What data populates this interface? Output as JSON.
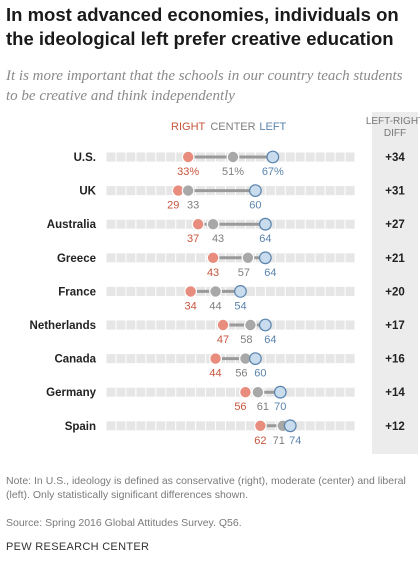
{
  "title": "In most advanced economies, individuals on the ideological left prefer creative education",
  "subtitle": "It is more important that the schools in our country teach students to be creative and think independently",
  "note": "Note: In U.S., ideology is defined as conservative (right), moderate (center) and liberal (left). Only statistically significant differences shown.",
  "source": "Source: Spring 2016 Global Attitudes Survey. Q56.",
  "organization": "PEW RESEARCH CENTER",
  "colors": {
    "right": "#e88d7e",
    "right_text": "#c8553d",
    "center": "#a8a8a8",
    "center_text": "#7f7f7f",
    "left": "#c8dcee",
    "left_text": "#5b84ad",
    "track": "#e6e6e6",
    "connector": "#9a9a9a",
    "diff_column": "#ececec"
  },
  "chart_data": {
    "type": "dot",
    "xlim": [
      0,
      100
    ],
    "series": [
      {
        "name": "RIGHT",
        "key": "right"
      },
      {
        "name": "CENTER",
        "key": "center"
      },
      {
        "name": "LEFT",
        "key": "left"
      }
    ],
    "diff_header": [
      "LEFT-RIGHT",
      "DIFF"
    ],
    "rows": [
      {
        "country": "U.S.",
        "right": 33,
        "center": 51,
        "left": 67,
        "right_label": "33%",
        "center_label": "51%",
        "left_label": "67%",
        "diff": "+34"
      },
      {
        "country": "UK",
        "right": 29,
        "center": 33,
        "left": 60,
        "right_label": "29",
        "center_label": "33",
        "left_label": "60",
        "diff": "+31"
      },
      {
        "country": "Australia",
        "right": 37,
        "center": 43,
        "left": 64,
        "right_label": "37",
        "center_label": "43",
        "left_label": "64",
        "diff": "+27"
      },
      {
        "country": "Greece",
        "right": 43,
        "center": 57,
        "left": 64,
        "right_label": "43",
        "center_label": "57",
        "left_label": "64",
        "diff": "+21"
      },
      {
        "country": "France",
        "right": 34,
        "center": 44,
        "left": 54,
        "right_label": "34",
        "center_label": "44",
        "left_label": "54",
        "diff": "+20"
      },
      {
        "country": "Netherlands",
        "right": 47,
        "center": 58,
        "left": 64,
        "right_label": "47",
        "center_label": "58",
        "left_label": "64",
        "diff": "+17"
      },
      {
        "country": "Canada",
        "right": 44,
        "center": 56,
        "left": 60,
        "right_label": "44",
        "center_label": "56",
        "left_label": "60",
        "diff": "+16"
      },
      {
        "country": "Germany",
        "right": 56,
        "center": 61,
        "left": 70,
        "right_label": "56",
        "center_label": "61",
        "left_label": "70",
        "diff": "+14"
      },
      {
        "country": "Spain",
        "right": 62,
        "center": 71,
        "left": 74,
        "right_label": "62",
        "center_label": "71",
        "left_label": "74",
        "diff": "+12"
      }
    ]
  }
}
